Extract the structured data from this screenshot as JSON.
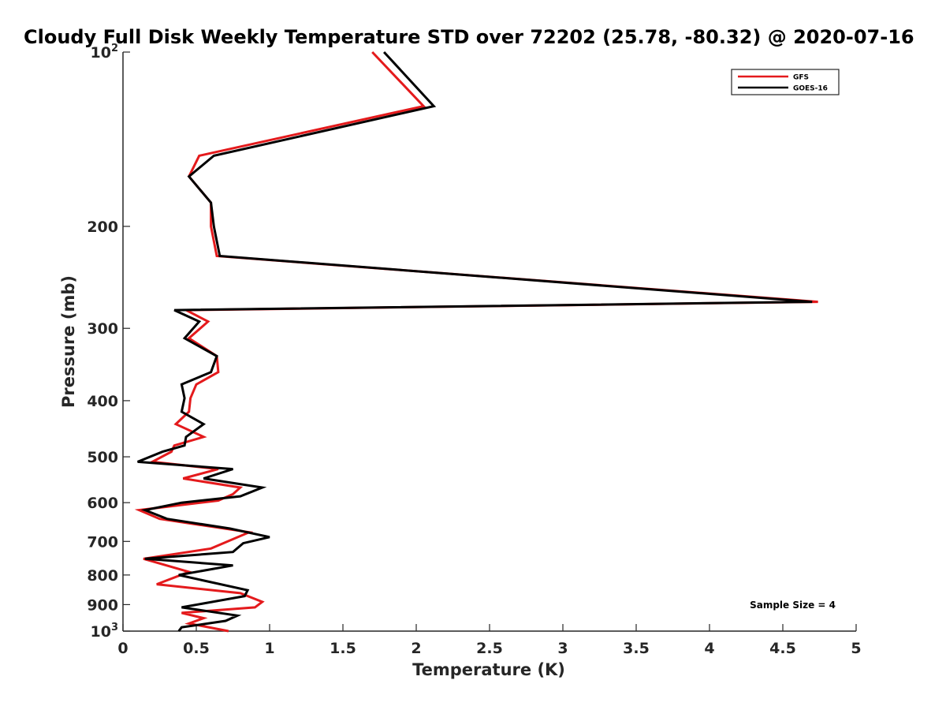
{
  "chart_data": {
    "type": "line",
    "title": "Cloudy Full Disk Weekly Temperature STD over 72202 (25.78, -80.32) @ 2020-07-16",
    "xlabel": "Temperature (K)",
    "ylabel": "Pressure (mb)",
    "xlim": [
      0,
      5
    ],
    "ylim": [
      100,
      1000
    ],
    "y_scale": "log",
    "y_reversed": true,
    "grid": false,
    "legend_position": "top-right",
    "x_ticks": [
      0,
      0.5,
      1,
      1.5,
      2,
      2.5,
      3,
      3.5,
      4,
      4.5,
      5
    ],
    "x_tick_labels": [
      "0",
      "0.5",
      "1",
      "1.5",
      "2",
      "2.5",
      "3",
      "3.5",
      "4",
      "4.5",
      "5"
    ],
    "y_ticks": [
      100,
      200,
      300,
      400,
      500,
      600,
      700,
      800,
      900,
      1000
    ],
    "y_tick_labels": [
      "10^2",
      "200",
      "300",
      "400",
      "500",
      "600",
      "700",
      "800",
      "900",
      "10^3"
    ],
    "annotation": "Sample Size = 4",
    "series": [
      {
        "name": "GFS",
        "color": "#e41a1c",
        "x": [
          1.7,
          2.05,
          0.52,
          0.45,
          0.6,
          0.6,
          0.64,
          4.74,
          0.43,
          0.58,
          0.45,
          0.64,
          0.65,
          0.5,
          0.46,
          0.45,
          0.36,
          0.55,
          0.35,
          0.33,
          0.2,
          0.65,
          0.41,
          0.8,
          0.75,
          0.65,
          0.11,
          0.25,
          0.86,
          0.6,
          0.14,
          0.45,
          0.23,
          0.8,
          0.95,
          0.9,
          0.4,
          0.55,
          0.45,
          0.72
        ],
        "y": [
          100,
          124,
          151,
          164,
          182,
          200,
          225,
          270,
          279,
          292,
          312,
          335,
          357,
          375,
          396,
          418,
          439,
          462,
          478,
          490,
          510,
          525,
          545,
          565,
          580,
          595,
          618,
          640,
          675,
          720,
          750,
          790,
          830,
          860,
          890,
          910,
          930,
          950,
          970,
          1000
        ]
      },
      {
        "name": "GOES-16",
        "color": "#000000",
        "x": [
          1.78,
          2.12,
          0.62,
          0.45,
          0.6,
          0.62,
          0.66,
          4.7,
          0.35,
          0.52,
          0.42,
          0.64,
          0.6,
          0.4,
          0.42,
          0.4,
          0.55,
          0.43,
          0.42,
          0.27,
          0.1,
          0.75,
          0.55,
          0.95,
          0.8,
          0.4,
          0.15,
          0.3,
          0.73,
          1.0,
          0.82,
          0.75,
          0.15,
          0.75,
          0.38,
          0.85,
          0.83,
          0.4,
          0.78,
          0.7,
          0.4,
          0.38
        ],
        "y": [
          100,
          124,
          151,
          164,
          182,
          200,
          225,
          270,
          279,
          292,
          312,
          335,
          357,
          375,
          396,
          418,
          439,
          462,
          478,
          490,
          510,
          525,
          545,
          565,
          585,
          600,
          618,
          640,
          665,
          688,
          705,
          730,
          750,
          770,
          800,
          850,
          870,
          910,
          940,
          960,
          985,
          1000
        ]
      }
    ]
  }
}
